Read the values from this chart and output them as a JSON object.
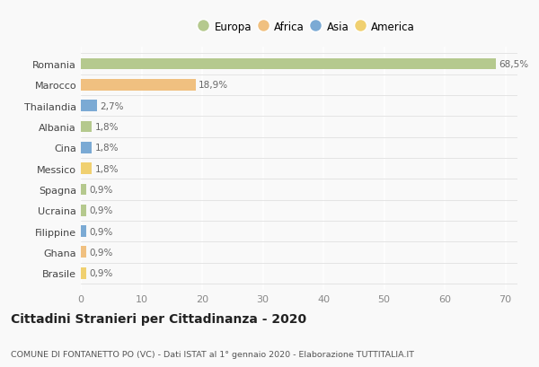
{
  "countries": [
    "Romania",
    "Marocco",
    "Thailandia",
    "Albania",
    "Cina",
    "Messico",
    "Spagna",
    "Ucraina",
    "Filippine",
    "Ghana",
    "Brasile"
  ],
  "values": [
    68.5,
    18.9,
    2.7,
    1.8,
    1.8,
    1.8,
    0.9,
    0.9,
    0.9,
    0.9,
    0.9
  ],
  "labels": [
    "68,5%",
    "18,9%",
    "2,7%",
    "1,8%",
    "1,8%",
    "1,8%",
    "0,9%",
    "0,9%",
    "0,9%",
    "0,9%",
    "0,9%"
  ],
  "colors": [
    "#b5c98e",
    "#f0c080",
    "#7baad4",
    "#b5c98e",
    "#7baad4",
    "#f0d070",
    "#b5c98e",
    "#b5c98e",
    "#7baad4",
    "#f0c080",
    "#f0d070"
  ],
  "legend_labels": [
    "Europa",
    "Africa",
    "Asia",
    "America"
  ],
  "legend_colors": [
    "#b5c98e",
    "#f0c080",
    "#7baad4",
    "#f0d070"
  ],
  "xlim": [
    0,
    72
  ],
  "xticks": [
    0,
    10,
    20,
    30,
    40,
    50,
    60,
    70
  ],
  "title": "Cittadini Stranieri per Cittadinanza - 2020",
  "subtitle": "COMUNE DI FONTANETTO PO (VC) - Dati ISTAT al 1° gennaio 2020 - Elaborazione TUTTITALIA.IT",
  "background_color": "#f9f9f9",
  "grid_color": "#ffffff",
  "label_color": "#666666",
  "bar_height": 0.55
}
